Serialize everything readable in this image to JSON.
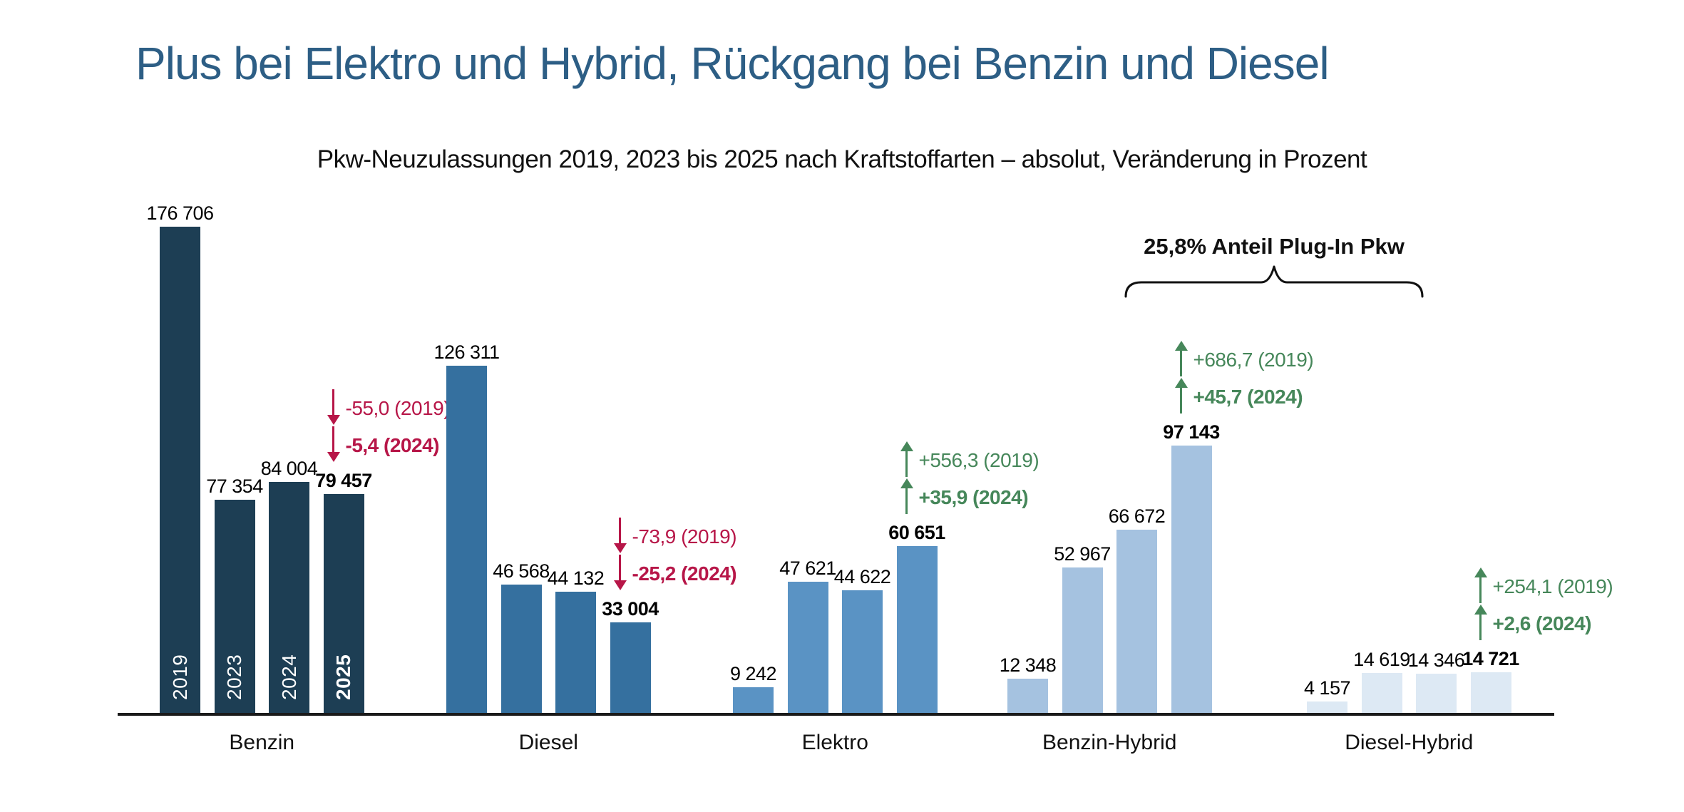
{
  "title": "Plus bei Elektro und Hybrid, Rückgang bei Benzin und Diesel",
  "subtitle": "Pkw-Neuzulassungen 2019, 2023 bis 2025 nach Kraftstoffarten – absolut, Veränderung in Prozent",
  "annotations": {
    "plug_in_share": "25,8% Anteil Plug-In Pkw"
  },
  "colors": {
    "title": "#2d5e85",
    "decrease": "#b71648",
    "increase": "#46875a",
    "axis": "#1a1a1a",
    "value_label": "#000000",
    "year_label_in_bar": "#ffffff"
  },
  "chart_data": {
    "type": "bar",
    "years": [
      "2019",
      "2023",
      "2024",
      "2025"
    ],
    "ylim": [
      0,
      180000
    ],
    "grid": false,
    "legend": "none",
    "groups": [
      {
        "category": "Benzin",
        "color": "#1d3e54",
        "values": [
          176706,
          77354,
          84004,
          79457
        ],
        "labels": [
          "176 706",
          "77 354",
          "84 004",
          "79 457"
        ],
        "years_inside_bars": true,
        "changes": [
          {
            "text": "-55,0 (2019)",
            "direction": "down",
            "bold": false
          },
          {
            "text": "-5,4 (2024)",
            "direction": "down",
            "bold": true
          }
        ]
      },
      {
        "category": "Diesel",
        "color": "#35709f",
        "values": [
          126311,
          46568,
          44132,
          33004
        ],
        "labels": [
          "126 311",
          "46 568",
          "44 132",
          "33 004"
        ],
        "years_inside_bars": false,
        "changes": [
          {
            "text": "-73,9 (2019)",
            "direction": "down",
            "bold": false
          },
          {
            "text": "-25,2 (2024)",
            "direction": "down",
            "bold": true
          }
        ]
      },
      {
        "category": "Elektro",
        "color": "#5a93c4",
        "values": [
          9242,
          47621,
          44622,
          60651
        ],
        "labels": [
          "9 242",
          "47 621",
          "44 622",
          "60 651"
        ],
        "years_inside_bars": false,
        "changes": [
          {
            "text": "+556,3 (2019)",
            "direction": "up",
            "bold": false
          },
          {
            "text": "+35,9 (2024)",
            "direction": "up",
            "bold": true
          }
        ]
      },
      {
        "category": "Benzin-Hybrid",
        "color": "#a5c2e0",
        "values": [
          12348,
          52967,
          66672,
          97143
        ],
        "labels": [
          "12 348",
          "52 967",
          "66 672",
          "97 143"
        ],
        "years_inside_bars": false,
        "changes": [
          {
            "text": "+686,7 (2019)",
            "direction": "up",
            "bold": false
          },
          {
            "text": "+45,7 (2024)",
            "direction": "up",
            "bold": true
          }
        ]
      },
      {
        "category": "Diesel-Hybrid",
        "color": "#dde9f4",
        "values": [
          4157,
          14619,
          14346,
          14721
        ],
        "labels": [
          "4 157",
          "14 619",
          "14 346",
          "14 721"
        ],
        "years_inside_bars": false,
        "changes": [
          {
            "text": "+254,1 (2019)",
            "direction": "up",
            "bold": false
          },
          {
            "text": "+2,6 (2024)",
            "direction": "up",
            "bold": true
          }
        ]
      }
    ]
  }
}
